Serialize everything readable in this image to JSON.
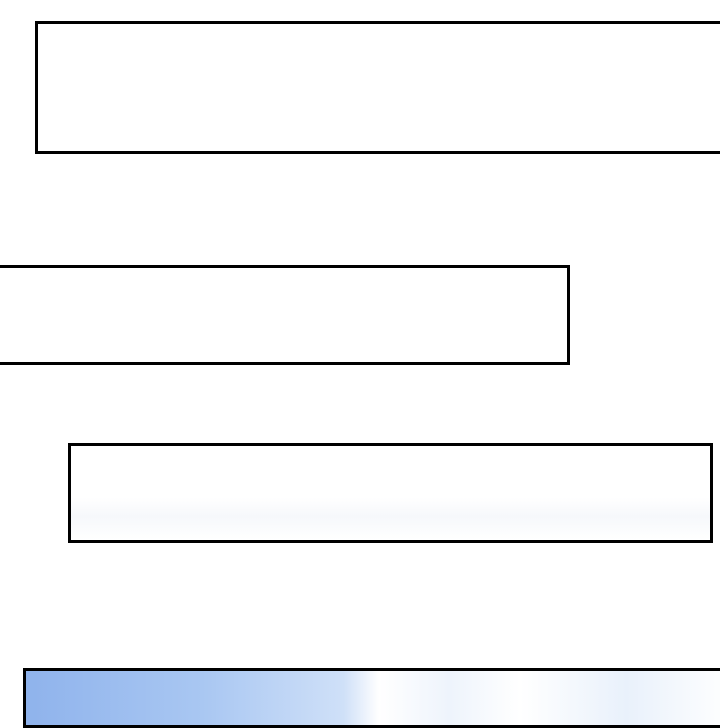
{
  "panels": [
    {
      "text": ""
    },
    {
      "text": ""
    },
    {
      "text": ""
    },
    {
      "text": ""
    }
  ],
  "colors": {
    "border": "#000000",
    "background": "#ffffff",
    "sky_blue": "#a9c7f2"
  }
}
